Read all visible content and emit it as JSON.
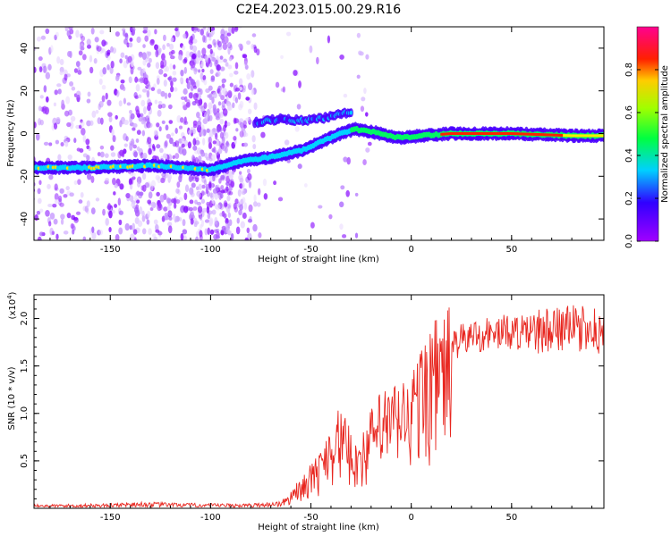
{
  "title": "C2E4.2023.015.00.29.R16",
  "chart_data": [
    {
      "type": "heatmap",
      "xlabel": "Height of straight line (km)",
      "ylabel": "Frequency (Hz)",
      "xlim": [
        -188,
        96
      ],
      "ylim": [
        -50,
        50
      ],
      "xticks": [
        -150,
        -100,
        -50,
        0,
        50
      ],
      "yticks": [
        -40,
        -20,
        0,
        20,
        40
      ],
      "colorbar": {
        "label": "Normalized spectral amplitude",
        "range": [
          0,
          1
        ],
        "ticks": [
          "0.0",
          "0.2",
          "0.4",
          "0.6",
          "0.8"
        ],
        "ticks_values": [
          0,
          0.2,
          0.4,
          0.6,
          0.8
        ],
        "colormap": "rainbow (violet → blue → cyan → green → yellow → red → pink)"
      },
      "main_trace": {
        "description": "frequency of strongest component vs height",
        "x": [
          -188,
          -160,
          -130,
          -100,
          -85,
          -70,
          -55,
          -45,
          -35,
          -28,
          -20,
          -12,
          -5,
          5,
          20,
          50,
          80,
          96
        ],
        "y": [
          -16,
          -16,
          -15,
          -17,
          -13,
          -11,
          -8,
          -4,
          0,
          2,
          1,
          -1,
          -2,
          -1,
          0,
          0,
          -1,
          -1
        ]
      },
      "secondary_trace": {
        "x": [
          -78,
          -65,
          -55,
          -45,
          -35,
          -30
        ],
        "y": [
          5,
          7,
          6,
          7,
          9,
          10
        ]
      },
      "colors": {
        "noise": "#9b30ff",
        "strong": "#00ff00",
        "peak": "#ff0000"
      }
    },
    {
      "type": "line",
      "xlabel": "Height of straight line (km)",
      "ylabel": "SNR (10 * v/v)",
      "y_multiplier": "(x10",
      "y_multiplier_exp": "4",
      "y_multiplier_close": ")",
      "xlim": [
        -188,
        96
      ],
      "ylim": [
        0,
        2.25
      ],
      "xticks": [
        -150,
        -100,
        -50,
        0,
        50
      ],
      "yticks": [
        "0.5",
        "1.0",
        "1.5",
        "2.0"
      ],
      "yticks_values": [
        0.5,
        1.0,
        1.5,
        2.0
      ],
      "series": [
        {
          "color": "#e8261f",
          "envelope_x": [
            -188,
            -150,
            -140,
            -100,
            -80,
            -65,
            -55,
            -45,
            -40,
            -35,
            -30,
            -25,
            -20,
            -15,
            -10,
            -5,
            0,
            5,
            10,
            15,
            20,
            25,
            30,
            40,
            50,
            60,
            70,
            80,
            90,
            96
          ],
          "envelope_y": [
            0.04,
            0.05,
            0.07,
            0.05,
            0.05,
            0.08,
            0.25,
            0.5,
            0.8,
            0.85,
            0.65,
            0.6,
            0.85,
            1.0,
            1.05,
            1.1,
            1.15,
            1.4,
            1.6,
            1.65,
            1.75,
            1.8,
            1.85,
            1.88,
            1.9,
            1.88,
            1.9,
            1.92,
            1.9,
            1.88
          ]
        }
      ]
    }
  ]
}
